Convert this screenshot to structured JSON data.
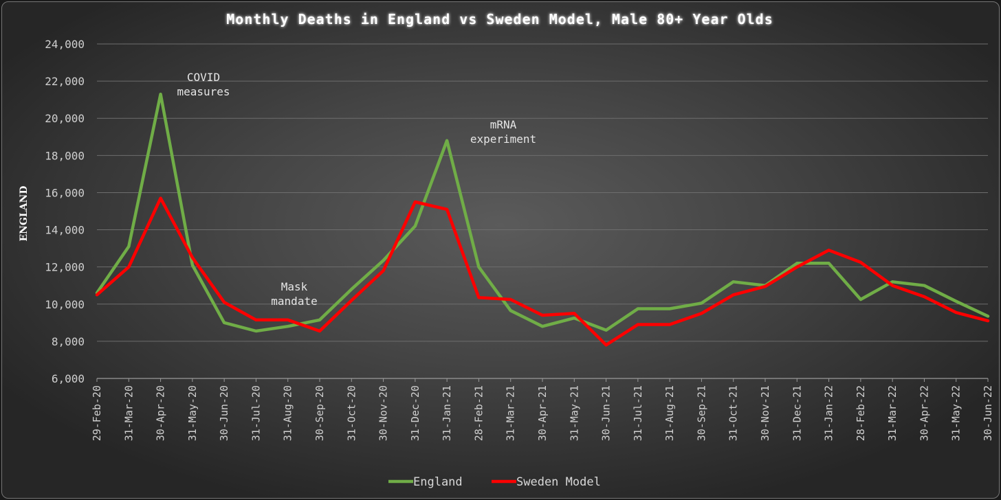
{
  "chart_data": {
    "type": "line",
    "title": "Monthly Deaths in England vs Sweden Model, Male 80+ Year Olds",
    "ylabel": "ENGLAND",
    "xlabel": "",
    "ylim": [
      6000,
      24000
    ],
    "yticks": [
      6000,
      8000,
      10000,
      12000,
      14000,
      16000,
      18000,
      20000,
      22000,
      24000
    ],
    "ytick_labels": [
      "6,000",
      "8,000",
      "10,000",
      "12,000",
      "14,000",
      "16,000",
      "18,000",
      "20,000",
      "22,000",
      "24,000"
    ],
    "grid": true,
    "legend_position": "bottom",
    "categories": [
      "29-Feb-20",
      "31-Mar-20",
      "30-Apr-20",
      "31-May-20",
      "30-Jun-20",
      "31-Jul-20",
      "31-Aug-20",
      "30-Sep-20",
      "31-Oct-20",
      "30-Nov-20",
      "31-Dec-20",
      "31-Jan-21",
      "28-Feb-21",
      "31-Mar-21",
      "30-Apr-21",
      "31-May-21",
      "30-Jun-21",
      "31-Jul-21",
      "31-Aug-21",
      "30-Sep-21",
      "31-Oct-21",
      "30-Nov-21",
      "31-Dec-21",
      "31-Jan-22",
      "28-Feb-22",
      "31-Mar-22",
      "30-Apr-22",
      "31-May-22",
      "30-Jun-22"
    ],
    "series": [
      {
        "name": "England",
        "color": "#70AD47",
        "values": [
          10600,
          13100,
          21300,
          12100,
          9000,
          8550,
          8800,
          9150,
          10800,
          12350,
          14200,
          18800,
          12000,
          9650,
          8800,
          9250,
          8600,
          9750,
          9750,
          10050,
          11200,
          11000,
          12200,
          12200,
          10250,
          11200,
          11000,
          10150,
          9350
        ]
      },
      {
        "name": "Sweden Model",
        "color": "#FF0000",
        "values": [
          10500,
          12000,
          15700,
          12500,
          10100,
          9150,
          9150,
          8550,
          10200,
          11800,
          15500,
          15100,
          10350,
          10250,
          9400,
          9500,
          7800,
          8900,
          8900,
          9500,
          10500,
          10950,
          12000,
          12900,
          12250,
          11000,
          10400,
          9550,
          9100
        ]
      }
    ],
    "annotations": [
      {
        "id": "covid",
        "lines": [
          "COVID",
          "measures"
        ]
      },
      {
        "id": "mask",
        "lines": [
          "Mask",
          "mandate"
        ]
      },
      {
        "id": "mrna",
        "lines": [
          "mRNA",
          "experiment"
        ]
      }
    ]
  }
}
